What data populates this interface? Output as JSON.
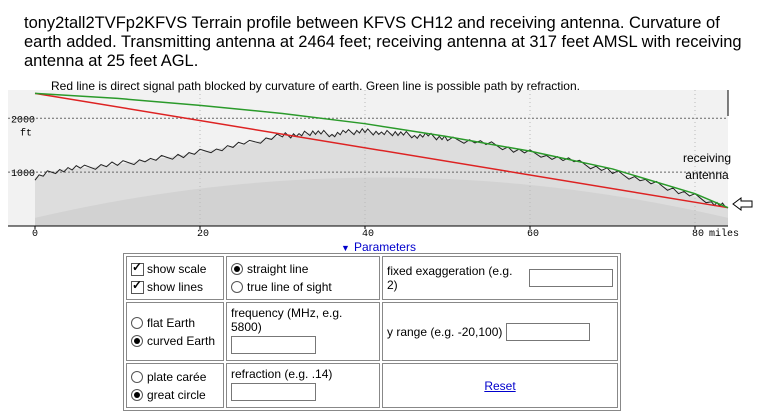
{
  "title": "tony2tall2TVFp2KFVS  Terrain profile between KFVS CH12 and receiving antenna. Curvature of earth added. Transmitting antenna at 2464 feet; receiving antenna at 317 feet AMSL with receiving antenna at 25 feet AGL.",
  "caption": "Red line is direct signal path blocked by curvature of earth. Green line is possible path by refraction.",
  "receiving_label_1": "receiving",
  "receiving_label_2": "antenna",
  "params_label": "Parameters",
  "colors": {
    "direct": "#dd2222",
    "refracted": "#2a9a2a",
    "link": "#0000cc"
  },
  "chart_data": {
    "type": "line",
    "title": "",
    "xlabel": "miles",
    "ylabel": "ft",
    "x_ticks": [
      "0",
      "20",
      "40",
      "60",
      "80"
    ],
    "y_ticks": [
      "1000",
      "2000"
    ],
    "xlim": [
      0,
      84
    ],
    "ylim": [
      0,
      2600
    ],
    "series": [
      {
        "name": "terrain",
        "x": [
          0,
          3,
          6,
          10,
          14,
          18,
          22,
          26,
          30,
          32,
          34,
          36,
          38,
          40,
          42,
          44,
          46,
          48,
          50,
          54,
          58,
          62,
          66,
          70,
          74,
          78,
          82,
          84
        ],
        "y": [
          900,
          1050,
          1080,
          1150,
          1230,
          1320,
          1430,
          1540,
          1680,
          1690,
          1750,
          1700,
          1740,
          1760,
          1720,
          1730,
          1680,
          1670,
          1610,
          1560,
          1420,
          1310,
          1170,
          1000,
          840,
          650,
          450,
          340
        ]
      },
      {
        "name": "direct path",
        "x": [
          0,
          84
        ],
        "y": [
          2464,
          340
        ]
      },
      {
        "name": "refracted path",
        "x": [
          0,
          10,
          20,
          30,
          40,
          50,
          60,
          70,
          80,
          84
        ],
        "y": [
          2464,
          2370,
          2240,
          2090,
          1900,
          1660,
          1390,
          1060,
          600,
          340
        ]
      }
    ]
  },
  "controls": {
    "show_scale": "show scale",
    "show_lines": "show lines",
    "straight_line": "straight line",
    "true_line_of_sight": "true line of sight",
    "fixed_exaggeration": "fixed exaggeration (e.g. 2)",
    "flat_earth": "flat Earth",
    "curved_earth": "curved Earth",
    "frequency": "frequency (MHz, e.g. 5800)",
    "y_range": "y range (e.g. -20,100)",
    "plate_carree": "plate carée",
    "great_circle": "great circle",
    "refraction": "refraction (e.g. .14)",
    "reset": "Reset"
  }
}
